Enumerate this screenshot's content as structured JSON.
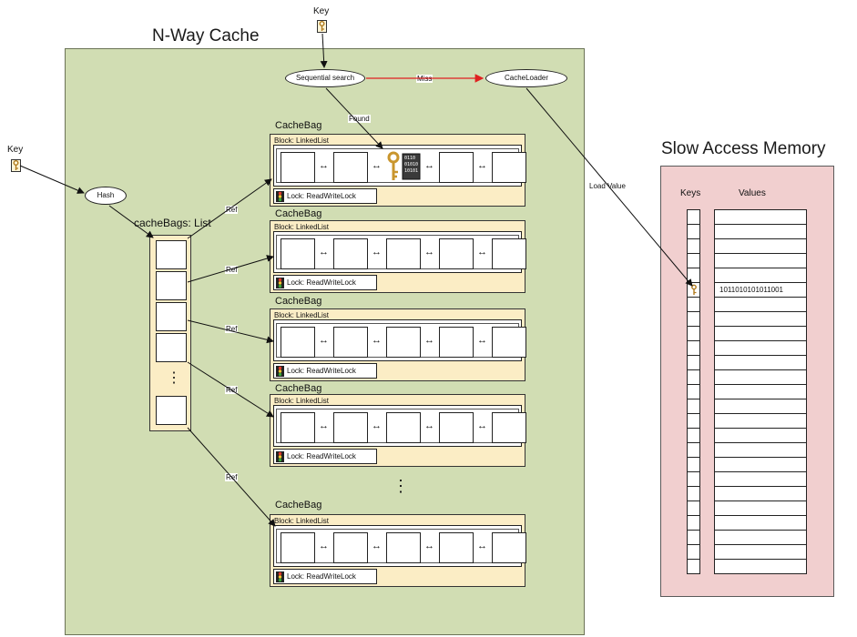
{
  "labels": {
    "nway_title": "N-Way Cache",
    "slow_title": "Slow Access Memory",
    "key_top": "Key",
    "key_left": "Key",
    "sequential_search": "Sequential search",
    "cache_loader": "CacheLoader",
    "hash": "Hash",
    "cache_bags_list": "cacheBags: List",
    "miss": "Miss",
    "found": "Found",
    "load_value": "Load Value",
    "ref": "Ref",
    "keys_header": "Keys",
    "values_header": "Values",
    "cache_bag": "CacheBag",
    "block": "Block: LinkedList",
    "lock": "Lock: ReadWriteLock",
    "ellipsis": "⋮",
    "stored_value": "1011010101011001",
    "binary_block": [
      "0110",
      "01010",
      "10101"
    ]
  },
  "cache_bags": [
    {
      "title": "CacheBag",
      "block": "Block: LinkedList",
      "lock": "Lock: ReadWriteLock",
      "has_found_item": true
    },
    {
      "title": "CacheBag",
      "block": "Block: LinkedList",
      "lock": "Lock: ReadWriteLock",
      "has_found_item": false
    },
    {
      "title": "CacheBag",
      "block": "Block: LinkedList",
      "lock": "Lock: ReadWriteLock",
      "has_found_item": false
    },
    {
      "title": "CacheBag",
      "block": "Block: LinkedList",
      "lock": "Lock: ReadWriteLock",
      "has_found_item": false
    },
    {
      "title": "CacheBag",
      "block": "Block: LinkedList",
      "lock": "Lock: ReadWriteLock",
      "has_found_item": false
    }
  ],
  "colors": {
    "cache_panel": "#d1ddb3",
    "memory_panel": "#f1cfcf",
    "bag_fill": "#fbedc5",
    "miss_arrow": "#e02020",
    "key_gold": "#c9962e"
  }
}
